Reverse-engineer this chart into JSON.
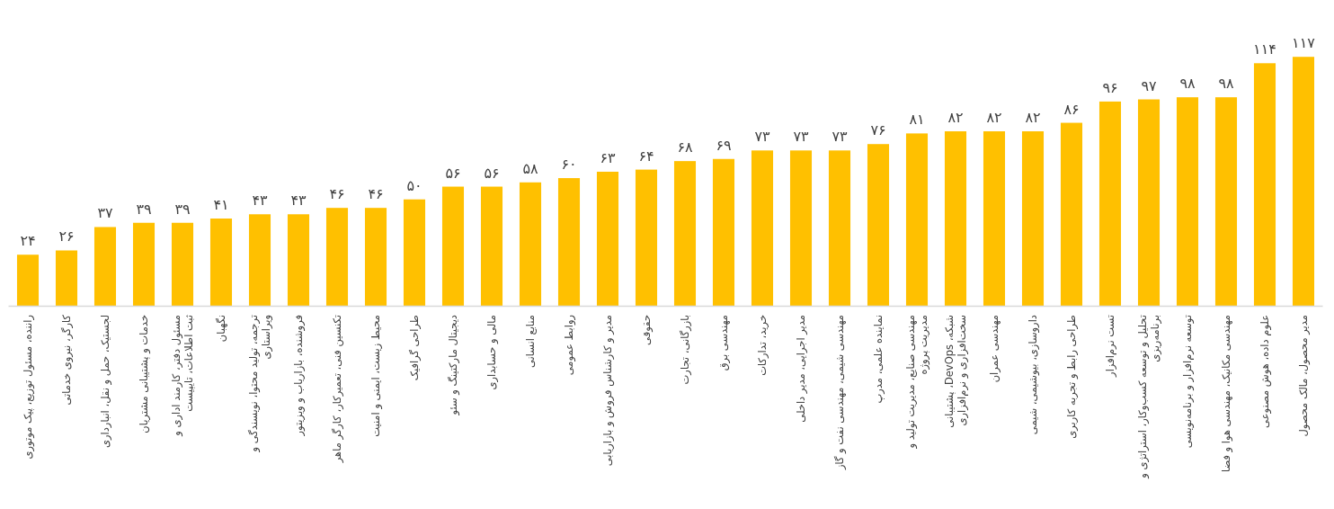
{
  "chart_data": {
    "type": "bar",
    "color": "#ffc000",
    "categories": [
      "راننده، مسئول توزیع، پیک موتوری",
      "کارگر، نیروی خدماتی",
      "لجستیک، حمل و نقل، انبارداری",
      "خدمات و پشتیبانی مشتریان",
      "مسئول دفتر، کارمند اداری و\nثبت اطلاعات، تایپیست",
      "نگهبان",
      "ترجمه، تولید محتوا، نویسندگی و\nویراستاری",
      "فروشنده، بازاریاب و ویزیتور",
      "تکنسین فنی، تعمیرکار، کارگر ماهر",
      "محیط زیست، ایمنی و امنیت",
      "طراحی گرافیک",
      "دیجیتال مارکتینگ و سئو",
      "مالی و حسابداری",
      "منابع انسانی",
      "روابط عمومی",
      "مدیر و کارشناس فروش و بازاریابی",
      "حقوقی",
      "بازرگانی، تجارت",
      "مهندسی برق",
      "خرید، تدارکات",
      "مدیر اجرایی، مدیر داخلی",
      "مهندسی شیمی، مهندسی نفت و گاز",
      "نماینده علمی، مدرپ",
      "مهندسی صنایع، مدیریت تولید و\nمدیریت پروژه",
      "شبکه، DevOps، پشتیبانی\nسخت‌افزاری و نرم‌افزاری",
      "مهندسی عمران",
      "داروسازی، بیوشیمی، شیمی",
      "طراحی رابط و تجربه کاربری",
      "تست نرم‌افزار",
      "تحلیل و توسعه کسب‌وکار، استراتژی و\nبرنامه‌ریزی",
      "توسعه نرم‌افزار و برنامه‌نویسی",
      "مهندسی مکانیک، مهندسی هوا و فضا",
      "علوم داده، هوش مصنوعی",
      "مدیر محصول، مالک محصول"
    ],
    "values": [
      24,
      26,
      37,
      39,
      39,
      41,
      43,
      43,
      46,
      46,
      50,
      56,
      56,
      58,
      60,
      63,
      64,
      68,
      69,
      73,
      73,
      73,
      76,
      81,
      82,
      82,
      82,
      86,
      96,
      97,
      98,
      98,
      114,
      117
    ],
    "value_labels": [
      "۲۴",
      "۲۶",
      "۳۷",
      "۳۹",
      "۳۹",
      "۴۱",
      "۴۳",
      "۴۳",
      "۴۶",
      "۴۶",
      "۵۰",
      "۵۶",
      "۵۶",
      "۵۸",
      "۶۰",
      "۶۳",
      "۶۴",
      "۶۸",
      "۶۹",
      "۷۳",
      "۷۳",
      "۷۳",
      "۷۶",
      "۸۱",
      "۸۲",
      "۸۲",
      "۸۲",
      "۸۶",
      "۹۶",
      "۹۷",
      "۹۸",
      "۹۸",
      "۱۱۴",
      "۱۱۷"
    ]
  }
}
